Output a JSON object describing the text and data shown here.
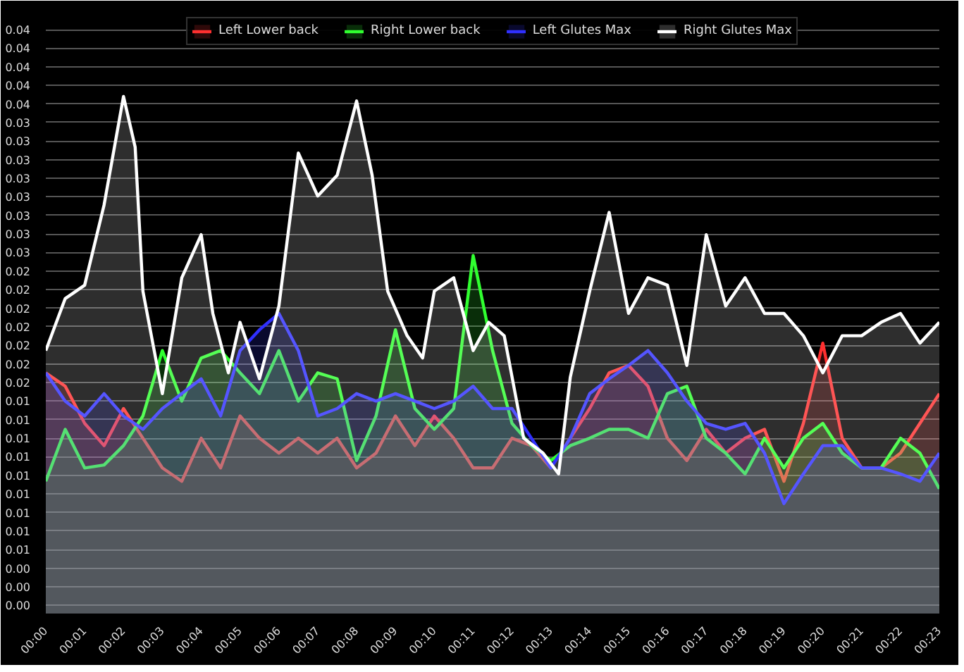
{
  "chart_data": {
    "type": "area",
    "x": [
      0,
      0.5,
      1,
      1.5,
      2,
      2.5,
      3,
      3.5,
      4,
      4.5,
      5,
      5.5,
      6,
      6.5,
      7,
      7.5,
      8,
      8.5,
      9,
      9.5,
      10,
      10.5,
      11,
      11.5,
      12,
      12.5,
      13,
      13.5,
      14,
      14.5,
      15,
      15.5,
      16,
      16.5,
      17,
      17.5,
      18,
      18.5,
      19,
      19.5,
      20,
      20.5,
      21,
      21.5,
      22,
      22.5,
      23
    ],
    "series": [
      {
        "name": "Left Lower back",
        "color": "#ff3030",
        "values": [
          0.0169,
          0.016,
          0.0135,
          0.012,
          0.0145,
          0.0125,
          0.0105,
          0.0096,
          0.0125,
          0.0105,
          0.014,
          0.0125,
          0.0115,
          0.0125,
          0.0115,
          0.0125,
          0.0105,
          0.0115,
          0.014,
          0.012,
          0.014,
          0.0125,
          0.0105,
          0.0105,
          0.0125,
          0.012,
          0.0105,
          0.0125,
          0.0145,
          0.0169,
          0.0174,
          0.016,
          0.0125,
          0.011,
          0.0131,
          0.0115,
          0.0125,
          0.0131,
          0.0096,
          0.0135,
          0.0189,
          0.0125,
          0.0105,
          0.0105,
          0.0115,
          0.0135,
          0.0155
        ]
      },
      {
        "name": "Right Lower back",
        "color": "#30ff30",
        "values": [
          0.0096,
          0.0131,
          0.0105,
          0.0107,
          0.012,
          0.014,
          0.0184,
          0.015,
          0.0179,
          0.0184,
          0.0169,
          0.0155,
          0.0184,
          0.015,
          0.0169,
          0.0165,
          0.011,
          0.014,
          0.0198,
          0.0145,
          0.0131,
          0.0145,
          0.0248,
          0.0184,
          0.0135,
          0.012,
          0.011,
          0.012,
          0.0125,
          0.0131,
          0.0131,
          0.0125,
          0.0155,
          0.016,
          0.0125,
          0.0115,
          0.0101,
          0.0125,
          0.0105,
          0.0125,
          0.0135,
          0.0115,
          0.0105,
          0.0105,
          0.0125,
          0.0115,
          0.0091
        ]
      },
      {
        "name": "Left Glutes Max",
        "color": "#3030ff",
        "values": [
          0.0169,
          0.015,
          0.014,
          0.0155,
          0.014,
          0.0131,
          0.0145,
          0.0155,
          0.0165,
          0.014,
          0.0184,
          0.0198,
          0.0209,
          0.0184,
          0.014,
          0.0145,
          0.0155,
          0.015,
          0.0155,
          0.015,
          0.0145,
          0.015,
          0.016,
          0.0145,
          0.0145,
          0.0125,
          0.0105,
          0.0125,
          0.0155,
          0.0165,
          0.0174,
          0.0184,
          0.0169,
          0.015,
          0.0135,
          0.0131,
          0.0135,
          0.0115,
          0.0081,
          0.0101,
          0.012,
          0.012,
          0.0105,
          0.0105,
          0.0101,
          0.0096,
          0.0115
        ]
      },
      {
        "name": "Right Glutes Max",
        "color": "#ffffff",
        "x": [
          0,
          0.5,
          1,
          1.5,
          2,
          2.3,
          2.5,
          3,
          3.5,
          4,
          4.3,
          4.7,
          5,
          5.5,
          6,
          6.5,
          7,
          7.5,
          8,
          8.4,
          8.8,
          9.3,
          9.7,
          10,
          10.5,
          11,
          11.4,
          11.8,
          12.3,
          12.8,
          13.2,
          13.5,
          14,
          14.5,
          15,
          15.5,
          16,
          16.5,
          17,
          17.5,
          18,
          18.5,
          19,
          19.5,
          20,
          20.5,
          21,
          21.5,
          22,
          22.5,
          23
        ],
        "values": [
          0.0184,
          0.0219,
          0.0228,
          0.0282,
          0.0355,
          0.0321,
          0.0224,
          0.0155,
          0.0233,
          0.0262,
          0.0209,
          0.0169,
          0.0203,
          0.0165,
          0.0214,
          0.0317,
          0.0288,
          0.0302,
          0.0352,
          0.0302,
          0.0224,
          0.0194,
          0.0179,
          0.0224,
          0.0233,
          0.0184,
          0.0203,
          0.0194,
          0.0125,
          0.0115,
          0.0101,
          0.0166,
          0.0224,
          0.0277,
          0.0209,
          0.0233,
          0.0228,
          0.0174,
          0.0262,
          0.0214,
          0.0233,
          0.0209,
          0.0209,
          0.0194,
          0.0169,
          0.0194,
          0.0194,
          0.0203,
          0.0209,
          0.0189,
          0.0203
        ]
      }
    ],
    "xlim": [
      0,
      23
    ],
    "xticks": [
      {
        "value": 0,
        "label": "00:00"
      },
      {
        "value": 1,
        "label": "00:01"
      },
      {
        "value": 2,
        "label": "00:02"
      },
      {
        "value": 3,
        "label": "00:03"
      },
      {
        "value": 4,
        "label": "00:04"
      },
      {
        "value": 5,
        "label": "00:05"
      },
      {
        "value": 6,
        "label": "00:06"
      },
      {
        "value": 7,
        "label": "00:07"
      },
      {
        "value": 8,
        "label": "00:08"
      },
      {
        "value": 9,
        "label": "00:09"
      },
      {
        "value": 10,
        "label": "00:10"
      },
      {
        "value": 11,
        "label": "00:11"
      },
      {
        "value": 12,
        "label": "00:12"
      },
      {
        "value": 13,
        "label": "00:13"
      },
      {
        "value": 14,
        "label": "00:14"
      },
      {
        "value": 15,
        "label": "00:15"
      },
      {
        "value": 16,
        "label": "00:16"
      },
      {
        "value": 17,
        "label": "00:17"
      },
      {
        "value": 18,
        "label": "00:18"
      },
      {
        "value": 19,
        "label": "00:19"
      },
      {
        "value": 20,
        "label": "00:20"
      },
      {
        "value": 21,
        "label": "00:21"
      },
      {
        "value": 22,
        "label": "00:22"
      },
      {
        "value": 23,
        "label": "00:23"
      }
    ],
    "ylim": [
      0.0007,
      0.041
    ],
    "yticks": [
      {
        "value": 0.00125,
        "label": "0.00"
      },
      {
        "value": 0.0025,
        "label": "0.00"
      },
      {
        "value": 0.00375,
        "label": "0.00"
      },
      {
        "value": 0.005,
        "label": "0.01"
      },
      {
        "value": 0.00625,
        "label": "0.01"
      },
      {
        "value": 0.0075,
        "label": "0.01"
      },
      {
        "value": 0.00875,
        "label": "0.01"
      },
      {
        "value": 0.01,
        "label": "0.01"
      },
      {
        "value": 0.01125,
        "label": "0.01"
      },
      {
        "value": 0.0125,
        "label": "0.01"
      },
      {
        "value": 0.01375,
        "label": "0.01"
      },
      {
        "value": 0.015,
        "label": "0.01"
      },
      {
        "value": 0.01625,
        "label": "0.02"
      },
      {
        "value": 0.0175,
        "label": "0.02"
      },
      {
        "value": 0.01875,
        "label": "0.02"
      },
      {
        "value": 0.02,
        "label": "0.02"
      },
      {
        "value": 0.02125,
        "label": "0.02"
      },
      {
        "value": 0.0225,
        "label": "0.02"
      },
      {
        "value": 0.02375,
        "label": "0.02"
      },
      {
        "value": 0.025,
        "label": "0.03"
      },
      {
        "value": 0.02625,
        "label": "0.03"
      },
      {
        "value": 0.0275,
        "label": "0.03"
      },
      {
        "value": 0.02875,
        "label": "0.03"
      },
      {
        "value": 0.03,
        "label": "0.03"
      },
      {
        "value": 0.03125,
        "label": "0.03"
      },
      {
        "value": 0.0325,
        "label": "0.03"
      },
      {
        "value": 0.03375,
        "label": "0.03"
      },
      {
        "value": 0.035,
        "label": "0.04"
      },
      {
        "value": 0.03625,
        "label": "0.04"
      },
      {
        "value": 0.0375,
        "label": "0.04"
      },
      {
        "value": 0.03875,
        "label": "0.04"
      },
      {
        "value": 0.04,
        "label": "0.04"
      }
    ],
    "grid": "y",
    "legend": "top"
  }
}
